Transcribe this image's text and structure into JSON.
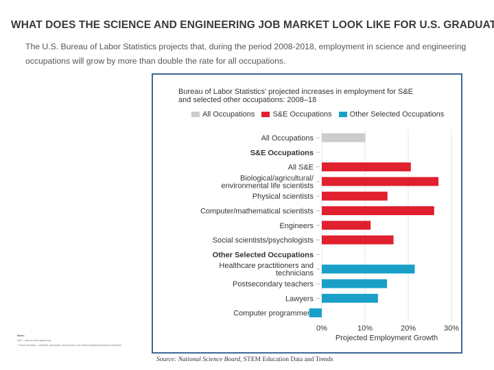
{
  "slide": {
    "title": "WHAT DOES THE SCIENCE AND ENGINEERING JOB MARKET LOOK LIKE FOR U.S. GRADUATES?",
    "intro": "The U.S. Bureau of Labor Statistics projects that, during the period 2008-2018, employment in science and engineering occupations will grow by more than double the rate for all occupations."
  },
  "chart_data": {
    "type": "bar",
    "orientation": "horizontal",
    "title_line1": "Bureau of Labor Statistics' projected increases in employment for S&E",
    "title_line2": "and selected other occupations: 2008–18",
    "legend": [
      {
        "label": "All Occupations",
        "color": "#cccccc"
      },
      {
        "label": "S&E Occupations",
        "color": "#e0202e"
      },
      {
        "label": "Other Selected Occupations",
        "color": "#1aa0c8"
      }
    ],
    "categories": [
      {
        "label": "All Occupations",
        "value": 10.1,
        "group": 0,
        "header": false
      },
      {
        "label": "S&E Occupations",
        "value": null,
        "group": null,
        "header": true
      },
      {
        "label": "All S&E",
        "value": 20.6,
        "group": 1,
        "header": false
      },
      {
        "label": "Biological/agricultural/|environmental life scientists",
        "value": 27.0,
        "group": 1,
        "header": false
      },
      {
        "label": "Physical scientists",
        "value": 15.2,
        "group": 1,
        "header": false
      },
      {
        "label": "Computer/mathematical scientists",
        "value": 26.0,
        "group": 1,
        "header": false
      },
      {
        "label": "Engineers",
        "value": 11.3,
        "group": 1,
        "header": false
      },
      {
        "label": "Social scientists/psychologists",
        "value": 16.6,
        "group": 1,
        "header": false
      },
      {
        "label": "Other Selected Occupations",
        "value": null,
        "group": null,
        "header": true
      },
      {
        "label": "Healthcare practitioners and|technicians",
        "value": 21.5,
        "group": 2,
        "header": false
      },
      {
        "label": "Postsecondary teachers",
        "value": 15.1,
        "group": 2,
        "header": false
      },
      {
        "label": "Lawyers",
        "value": 13.0,
        "group": 2,
        "header": false
      },
      {
        "label": "Computer programmers",
        "value": -2.9,
        "group": 2,
        "header": false
      }
    ],
    "xlim": [
      -3,
      30
    ],
    "xticks": [
      0,
      10,
      20,
      30
    ],
    "xtick_labels": [
      "0%",
      "10%",
      "20%",
      "30%"
    ],
    "xlabel": "Projected Employment Growth",
    "notes_title": "Notes:",
    "notes_lines": [
      "S&E = science and engineering.",
      "* Social scientists = scientists, geologists, astronomers, and meteorologists/atmospheric scientists."
    ]
  },
  "source": {
    "prefix": "Source: National Science Board,",
    "suffix": "STEM Education Data and Trends"
  }
}
